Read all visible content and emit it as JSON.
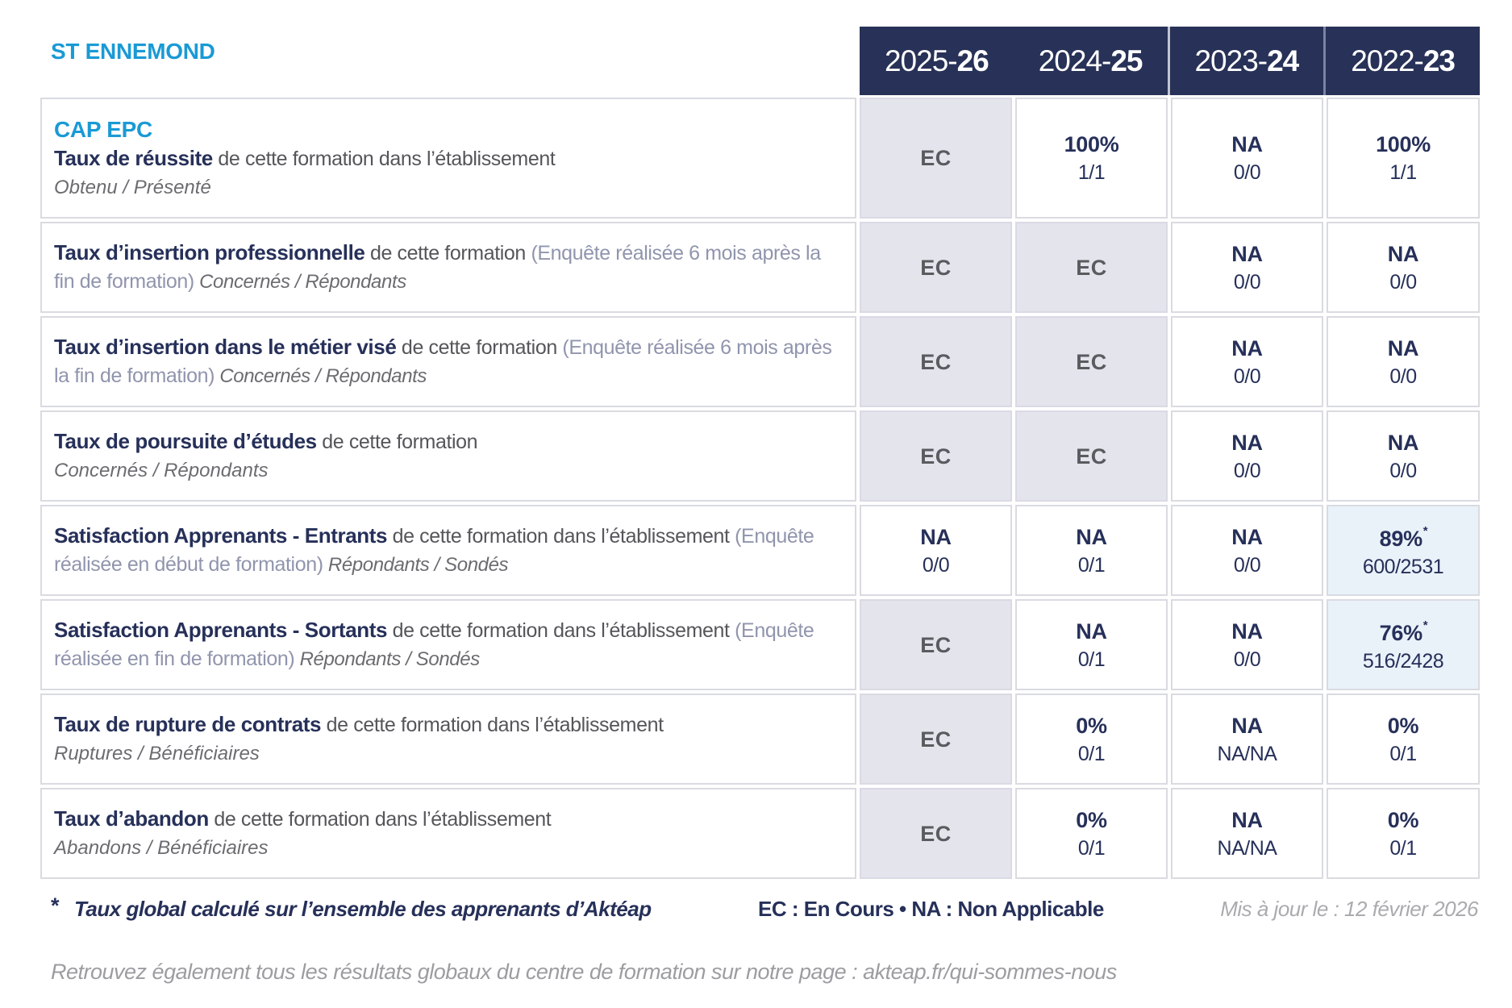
{
  "school": "ST ENNEMOND",
  "program": "CAP EPC",
  "years": [
    {
      "prefix": "2025-",
      "suffix": "26"
    },
    {
      "prefix": "2024-",
      "suffix": "25"
    },
    {
      "prefix": "2023-",
      "suffix": "24"
    },
    {
      "prefix": "2022-",
      "suffix": "23"
    }
  ],
  "colors": {
    "navy": "#283157",
    "cyan": "#1a9ad5",
    "ec_bg": "#e4e4ed",
    "highlight_bg": "#e9f2f9",
    "border": "#d9dbe1"
  },
  "rows": [
    {
      "title": "Taux de réussite",
      "desc": " de cette formation dans l’établissement",
      "paren": "",
      "sub": "Obtenu / Présenté",
      "cells": [
        {
          "value": "EC",
          "fraction": ""
        },
        {
          "value": "100%",
          "fraction": "1/1"
        },
        {
          "value": "NA",
          "fraction": "0/0"
        },
        {
          "value": "100%",
          "fraction": "1/1"
        }
      ]
    },
    {
      "title": "Taux d’insertion professionnelle",
      "desc": " de cette formation ",
      "paren": "(Enquête réalisée 6 mois après la fin de formation)",
      "sub": " Concernés / Répondants",
      "cells": [
        {
          "value": "EC",
          "fraction": ""
        },
        {
          "value": "EC",
          "fraction": ""
        },
        {
          "value": "NA",
          "fraction": "0/0"
        },
        {
          "value": "NA",
          "fraction": "0/0"
        }
      ]
    },
    {
      "title": "Taux d’insertion dans le métier visé",
      "desc": " de cette formation ",
      "paren": "(Enquête réalisée 6 mois après la fin de formation)",
      "sub": " Concernés / Répondants",
      "cells": [
        {
          "value": "EC",
          "fraction": ""
        },
        {
          "value": "EC",
          "fraction": ""
        },
        {
          "value": "NA",
          "fraction": "0/0"
        },
        {
          "value": "NA",
          "fraction": "0/0"
        }
      ]
    },
    {
      "title": "Taux de poursuite d’études",
      "desc": " de cette formation",
      "paren": "",
      "sub": "Concernés / Répondants",
      "cells": [
        {
          "value": "EC",
          "fraction": ""
        },
        {
          "value": "EC",
          "fraction": ""
        },
        {
          "value": "NA",
          "fraction": "0/0"
        },
        {
          "value": "NA",
          "fraction": "0/0"
        }
      ]
    },
    {
      "title": "Satisfaction Apprenants - Entrants",
      "desc": " de cette formation dans l’établissement ",
      "paren": "(Enquête réalisée en début de formation)",
      "sub": " Répondants / Sondés",
      "cells": [
        {
          "value": "NA",
          "fraction": "0/0"
        },
        {
          "value": "NA",
          "fraction": "0/1"
        },
        {
          "value": "NA",
          "fraction": "0/0"
        },
        {
          "value": "89%",
          "asterisk": "*",
          "fraction": "600/2531"
        }
      ]
    },
    {
      "title": "Satisfaction Apprenants - Sortants",
      "desc": " de cette formation dans l’établissement ",
      "paren": "(Enquête réalisée en fin de formation)",
      "sub": " Répondants / Sondés",
      "cells": [
        {
          "value": "EC",
          "fraction": ""
        },
        {
          "value": "NA",
          "fraction": "0/1"
        },
        {
          "value": "NA",
          "fraction": "0/0"
        },
        {
          "value": "76%",
          "asterisk": "*",
          "fraction": "516/2428"
        }
      ]
    },
    {
      "title": "Taux de rupture de contrats",
      "desc": " de cette formation dans l’établissement",
      "paren": "",
      "sub": "Ruptures / Bénéficiaires",
      "cells": [
        {
          "value": "EC",
          "fraction": ""
        },
        {
          "value": "0%",
          "fraction": "0/1"
        },
        {
          "value": "NA",
          "fraction": "NA/NA"
        },
        {
          "value": "0%",
          "fraction": "0/1"
        }
      ]
    },
    {
      "title": "Taux d’abandon",
      "desc": " de cette formation dans l’établissement",
      "paren": "",
      "sub": "Abandons / Bénéficiaires",
      "cells": [
        {
          "value": "EC",
          "fraction": ""
        },
        {
          "value": "0%",
          "fraction": "0/1"
        },
        {
          "value": "NA",
          "fraction": "NA/NA"
        },
        {
          "value": "0%",
          "fraction": "0/1"
        }
      ]
    }
  ],
  "footer": {
    "star": "*",
    "note": "Taux global calculé sur l’ensemble des apprenants d’Aktéap",
    "legend": "EC : En Cours   •   NA : Non Applicable",
    "updated": "Mis à jour le : 12 février 2026",
    "bottom": "Retrouvez également tous les résultats globaux du centre de formation sur notre page : akteap.fr/qui-sommes-nous"
  }
}
